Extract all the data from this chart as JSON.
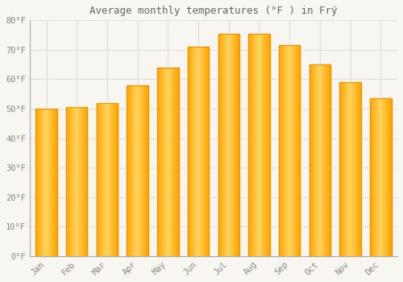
{
  "title": "Average monthly temperatures (°F ) in Frý",
  "months": [
    "Jan",
    "Feb",
    "Mar",
    "Apr",
    "May",
    "Jun",
    "Jul",
    "Aug",
    "Sep",
    "Oct",
    "Nov",
    "Dec"
  ],
  "values": [
    50,
    50.5,
    52,
    58,
    64,
    71,
    75.5,
    75.5,
    71.5,
    65,
    59,
    53.5
  ],
  "ylim": [
    0,
    80
  ],
  "yticks": [
    0,
    10,
    20,
    30,
    40,
    50,
    60,
    70,
    80
  ],
  "bar_color_center": "#FFD060",
  "bar_color_edge": "#FFA500",
  "bar_border_color": "#E8940A",
  "background_color": "#F8F6F0",
  "grid_color": "#E0DCE0",
  "text_color": "#888880",
  "title_color": "#666660",
  "bar_width": 0.7
}
